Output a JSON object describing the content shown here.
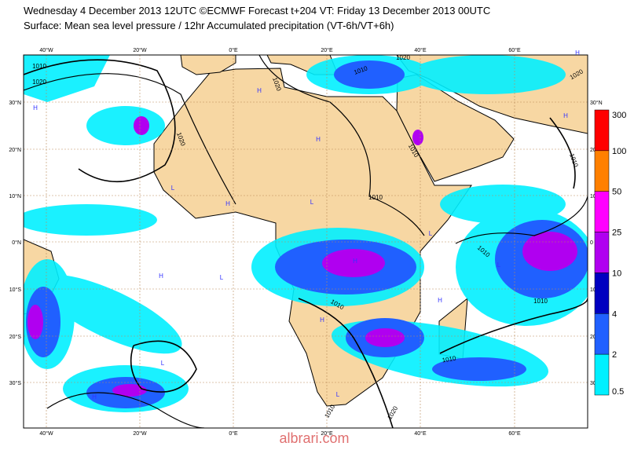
{
  "header": {
    "title": "Wednesday 4 December 2013 12UTC ©ECMWF Forecast t+204 VT: Friday 13 December 2013 00UTC",
    "subtitle": "Surface: Mean sea level pressure / 12hr Accumulated precipitation (VT-6h/VT+6h)"
  },
  "map": {
    "lon_labels": [
      "40°W",
      "20°W",
      "0°E",
      "20°E",
      "40°E",
      "60°E"
    ],
    "lat_labels_left": [
      "30°N",
      "20°N",
      "10°N",
      "0°N",
      "10°S",
      "20°S",
      "30°S"
    ],
    "lat_labels_right": [
      "30°N",
      "20",
      "10",
      "0",
      "10",
      "20",
      "30"
    ],
    "isobar_labels": [
      "1010",
      "1020",
      "1020",
      "1020",
      "1010",
      "1020",
      "1010",
      "1020",
      "1010",
      "1010",
      "1010",
      "1010",
      "1010",
      "1010",
      "1010",
      "1020"
    ],
    "pressure_centers": [
      "H",
      "H",
      "H",
      "L",
      "L",
      "H",
      "H",
      "L",
      "H",
      "L",
      "H",
      "L",
      "H",
      "L",
      "H",
      "H",
      "L",
      "H"
    ]
  },
  "legend": {
    "levels": [
      "300",
      "100",
      "50",
      "25",
      "10",
      "4",
      "2",
      "0.5"
    ],
    "colors": [
      "#ff0000",
      "#ff8000",
      "#ff00ff",
      "#b000f0",
      "#0000c0",
      "#2060ff",
      "#00f0ff"
    ]
  },
  "watermark": "albrari.com"
}
